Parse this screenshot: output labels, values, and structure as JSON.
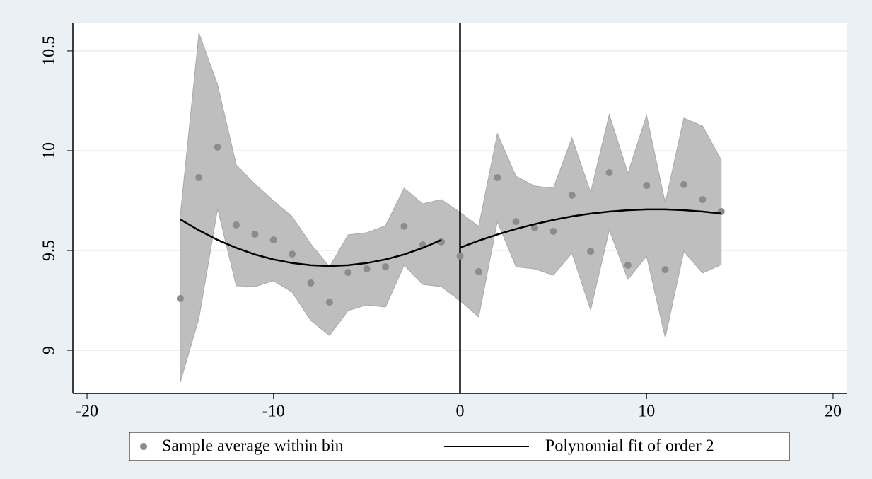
{
  "chart_data": {
    "type": "rd-plot",
    "xlim": [
      -20.76,
      20.76
    ],
    "ylim": [
      8.784,
      10.638
    ],
    "xticks": [
      -20,
      -10,
      0,
      10,
      20
    ],
    "yticks": [
      9,
      9.5,
      10,
      10.5
    ],
    "grid": true,
    "vline": 0,
    "legend": "bottom",
    "band": {
      "color": "#bebebe",
      "x": [
        -15,
        -14,
        -13,
        -12,
        -11,
        -10,
        -9,
        -8,
        -7,
        -6,
        -5,
        -4,
        -3,
        -2,
        -1,
        0,
        1,
        2,
        3,
        4,
        5,
        6,
        7,
        8,
        9,
        10,
        11,
        12,
        13,
        14
      ],
      "upper": [
        9.674,
        10.589,
        10.33,
        9.929,
        9.833,
        9.748,
        9.67,
        9.532,
        9.418,
        9.578,
        9.589,
        9.624,
        9.812,
        9.734,
        9.755,
        9.691,
        9.621,
        10.085,
        9.872,
        9.823,
        9.812,
        10.064,
        9.791,
        10.181,
        9.887,
        10.177,
        9.738,
        10.163,
        10.124,
        9.954
      ],
      "lower": [
        8.84,
        9.16,
        9.709,
        9.323,
        9.319,
        9.348,
        9.291,
        9.149,
        9.074,
        9.199,
        9.227,
        9.216,
        9.426,
        9.33,
        9.319,
        9.248,
        9.167,
        9.645,
        9.418,
        9.408,
        9.376,
        9.486,
        9.202,
        9.603,
        9.355,
        9.472,
        9.064,
        9.496,
        9.387,
        9.429
      ]
    },
    "series": [
      {
        "name": "Sample average within bin",
        "type": "scatter",
        "color": "#8c8c8c",
        "x": [
          -15,
          -14,
          -13,
          -12,
          -11,
          -10,
          -9,
          -8,
          -7,
          -6,
          -5,
          -4,
          -3,
          -2,
          -1,
          0,
          1,
          2,
          3,
          4,
          5,
          6,
          7,
          8,
          9,
          10,
          11,
          12,
          13,
          14
        ],
        "values": [
          9.259,
          9.865,
          10.018,
          9.628,
          9.582,
          9.553,
          9.482,
          9.337,
          9.241,
          9.39,
          9.408,
          9.418,
          9.621,
          9.528,
          9.543,
          9.472,
          9.394,
          9.865,
          9.645,
          9.613,
          9.596,
          9.777,
          9.496,
          9.89,
          9.426,
          9.826,
          9.404,
          9.83,
          9.755,
          9.695
        ]
      },
      {
        "name": "Polynomial fit of order 2",
        "type": "line",
        "color": "#000000",
        "segments": [
          {
            "x": [
              -15,
              -14,
              -13,
              -12,
              -11,
              -10,
              -9,
              -8,
              -7,
              -6,
              -5,
              -4,
              -3,
              -2,
              -1
            ],
            "values": [
              9.656,
              9.601,
              9.553,
              9.513,
              9.48,
              9.455,
              9.437,
              9.426,
              9.422,
              9.426,
              9.437,
              9.455,
              9.48,
              9.513,
              9.553
            ]
          },
          {
            "x": [
              0,
              1,
              2,
              3,
              4,
              5,
              6,
              7,
              8,
              9,
              10,
              11,
              12,
              13,
              14
            ],
            "values": [
              9.514,
              9.549,
              9.58,
              9.608,
              9.632,
              9.653,
              9.671,
              9.685,
              9.695,
              9.702,
              9.706,
              9.706,
              9.702,
              9.695,
              9.685
            ]
          }
        ]
      }
    ]
  }
}
